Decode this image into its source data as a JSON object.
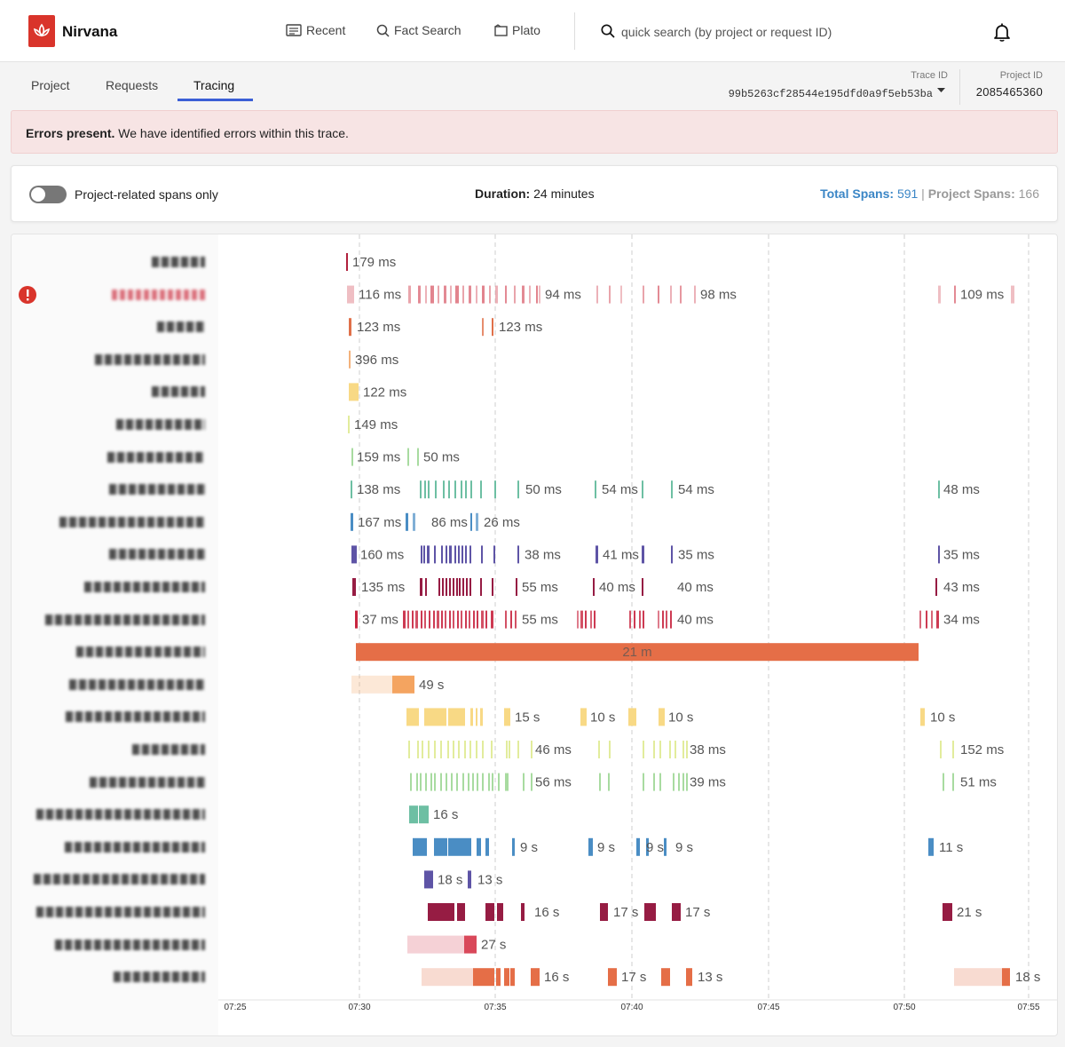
{
  "app": {
    "name": "Nirvana",
    "logo_color": "#d9342b",
    "icons": [
      "lotus-logo",
      "recent-icon",
      "search-icon",
      "plato-icon",
      "bell-icon",
      "caret-down-icon",
      "error-icon"
    ]
  },
  "nav": {
    "recent": "Recent",
    "fact_search": "Fact Search",
    "plato": "Plato"
  },
  "search": {
    "placeholder": "quick search (by project or request ID)"
  },
  "tabs": {
    "project": "Project",
    "requests": "Requests",
    "tracing": "Tracing",
    "active": "Tracing"
  },
  "trace": {
    "trace_id_label": "Trace ID",
    "trace_id": "99b5263cf28544e195dfd0a9f5eb53ba",
    "project_id_label": "Project ID",
    "project_id": "2085465360"
  },
  "banner": {
    "title": "Errors present.",
    "message": " We have identified errors within this trace."
  },
  "controls": {
    "toggle_label": "Project-related spans only",
    "toggle_on": false,
    "duration_label": "Duration:",
    "duration_value": " 24 minutes",
    "total_spans_label": "Total Spans:",
    "total_spans": "591",
    "separator": " | ",
    "project_spans_label": "Project Spans:",
    "project_spans": "166"
  },
  "timeline": {
    "ticks": [
      "07:25",
      "07:30",
      "07:35",
      "07:40",
      "07:45",
      "07:50",
      "07:55"
    ],
    "rows": [
      {
        "color": "#b0203d",
        "error": false,
        "labels": [
          "179 ms"
        ]
      },
      {
        "color": "#e07d88",
        "error": true,
        "labels": [
          "116 ms",
          "94 ms",
          "98 ms",
          "109 ms"
        ]
      },
      {
        "color": "#e0704a",
        "error": false,
        "labels": [
          "123 ms",
          "123 ms"
        ]
      },
      {
        "color": "#f3b27c",
        "error": false,
        "labels": [
          "396 ms"
        ]
      },
      {
        "color": "#f8d985",
        "error": false,
        "labels": [
          "122 ms"
        ]
      },
      {
        "color": "#e2ec9c",
        "error": false,
        "labels": [
          "149 ms"
        ]
      },
      {
        "color": "#a8dba0",
        "error": false,
        "labels": [
          "159 ms",
          "50 ms"
        ]
      },
      {
        "color": "#6dbfa3",
        "error": false,
        "labels": [
          "138 ms",
          "50 ms",
          "54 ms",
          "54 ms",
          "48 ms"
        ]
      },
      {
        "color": "#4a8dc4",
        "error": false,
        "labels": [
          "167 ms",
          "86 ms",
          "26 ms"
        ]
      },
      {
        "color": "#5e54a6",
        "error": false,
        "labels": [
          "160 ms",
          "38 ms",
          "41 ms",
          "35 ms",
          "35 ms"
        ]
      },
      {
        "color": "#961c43",
        "error": false,
        "labels": [
          "135 ms",
          "55 ms",
          "40 ms",
          "40 ms",
          "43 ms"
        ]
      },
      {
        "color": "#c8253f",
        "error": false,
        "labels": [
          "37 ms",
          "55 ms",
          "40 ms",
          "34 ms"
        ]
      },
      {
        "color": "#e56e47",
        "error": false,
        "labels": [
          "21 m"
        ]
      },
      {
        "color": "#f4a460",
        "error": false,
        "labels": [
          "49 s"
        ]
      },
      {
        "color": "#f8d985",
        "error": false,
        "labels": [
          "15 s",
          "10 s",
          "10 s",
          "10 s"
        ]
      },
      {
        "color": "#e2ec9c",
        "error": false,
        "labels": [
          "46 ms",
          "38 ms",
          "152 ms"
        ]
      },
      {
        "color": "#a8dba0",
        "error": false,
        "labels": [
          "56 ms",
          "39 ms",
          "51 ms"
        ]
      },
      {
        "color": "#6dbfa3",
        "error": false,
        "labels": [
          "16 s"
        ]
      },
      {
        "color": "#4a8dc4",
        "error": false,
        "labels": [
          "9 s",
          "9 s",
          "9 s",
          "9 s",
          "11 s"
        ]
      },
      {
        "color": "#5e54a6",
        "error": false,
        "labels": [
          "18 s",
          "13 s"
        ]
      },
      {
        "color": "#961c43",
        "error": false,
        "labels": [
          "16 s",
          "17 s",
          "17 s",
          "21 s"
        ]
      },
      {
        "color": "#d9485a",
        "error": false,
        "labels": [
          "27 s"
        ]
      },
      {
        "color": "#e56e47",
        "error": false,
        "labels": [
          "16 s",
          "17 s",
          "13 s",
          "18 s"
        ]
      }
    ]
  }
}
